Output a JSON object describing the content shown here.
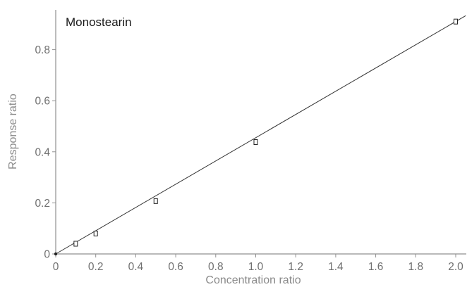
{
  "chart_data": {
    "type": "scatter",
    "annotation": "Monostearin",
    "xlabel": "Concentration ratio",
    "ylabel": "Response ratio",
    "xlim": [
      0,
      2.05
    ],
    "ylim": [
      0,
      0.935
    ],
    "x_ticks": [
      0,
      0.2,
      0.4,
      0.6,
      0.8,
      1.0,
      1.2,
      1.4,
      1.6,
      1.8,
      2.0
    ],
    "x_tick_labels": [
      "0",
      "0.2",
      "0.4",
      "0.6",
      "0.8",
      "1.0",
      "1.2",
      "1.4",
      "1.6",
      "1.8",
      "2.0"
    ],
    "y_ticks": [
      0,
      0.2,
      0.4,
      0.6,
      0.8
    ],
    "y_tick_labels": [
      "0",
      "0.2",
      "0.4",
      "0.6",
      "0.8"
    ],
    "grid": false,
    "series": [
      {
        "points": [
          {
            "x": 0,
            "y": 0
          },
          {
            "x": 0.1,
            "y": 0.04
          },
          {
            "x": 0.2,
            "y": 0.08
          },
          {
            "x": 0.5,
            "y": 0.207
          },
          {
            "x": 1.0,
            "y": 0.438
          },
          {
            "x": 2.0,
            "y": 0.91
          }
        ],
        "marker": "open-square",
        "color": "#222222"
      }
    ],
    "fit_line": {
      "x": [
        0,
        2.05
      ],
      "y": [
        0,
        0.933
      ],
      "color": "#333333"
    }
  }
}
